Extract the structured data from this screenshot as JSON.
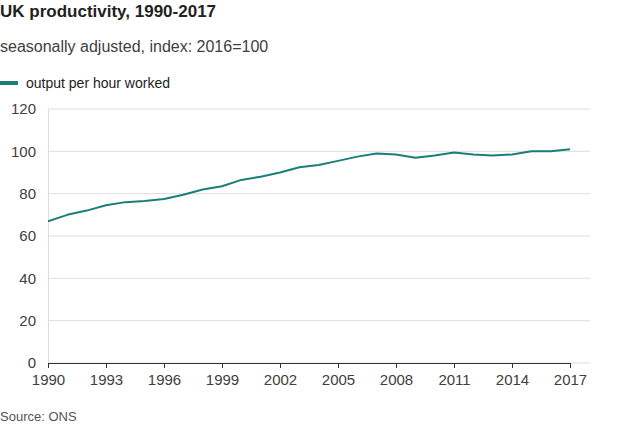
{
  "chart_data": {
    "type": "line",
    "title": "UK productivity, 1990-2017",
    "subtitle": "seasonally adjusted, index: 2016=100",
    "source": "Source: ONS",
    "x": [
      1990,
      1991,
      1992,
      1993,
      1994,
      1995,
      1996,
      1997,
      1998,
      1999,
      2000,
      2001,
      2002,
      2003,
      2004,
      2005,
      2006,
      2007,
      2008,
      2009,
      2010,
      2011,
      2012,
      2013,
      2014,
      2015,
      2016,
      2017
    ],
    "series": [
      {
        "name": "output per hour worked",
        "color": "#1a7f7a",
        "values": [
          67,
          70,
          72,
          74.5,
          76,
          76.5,
          77.5,
          79.5,
          82,
          83.5,
          86.5,
          88,
          90,
          92.5,
          93.5,
          95.5,
          97.5,
          99,
          98.5,
          97,
          98,
          99.5,
          98.5,
          98,
          98.5,
          100,
          100,
          101
        ]
      }
    ],
    "xlim": [
      1990,
      2017
    ],
    "xticks": [
      1990,
      1993,
      1996,
      1999,
      2002,
      2005,
      2008,
      2011,
      2014,
      2017
    ],
    "ylim": [
      0,
      120
    ],
    "yticks": [
      0,
      20,
      40,
      60,
      80,
      100,
      120
    ],
    "grid": true,
    "legend": "top-left"
  }
}
